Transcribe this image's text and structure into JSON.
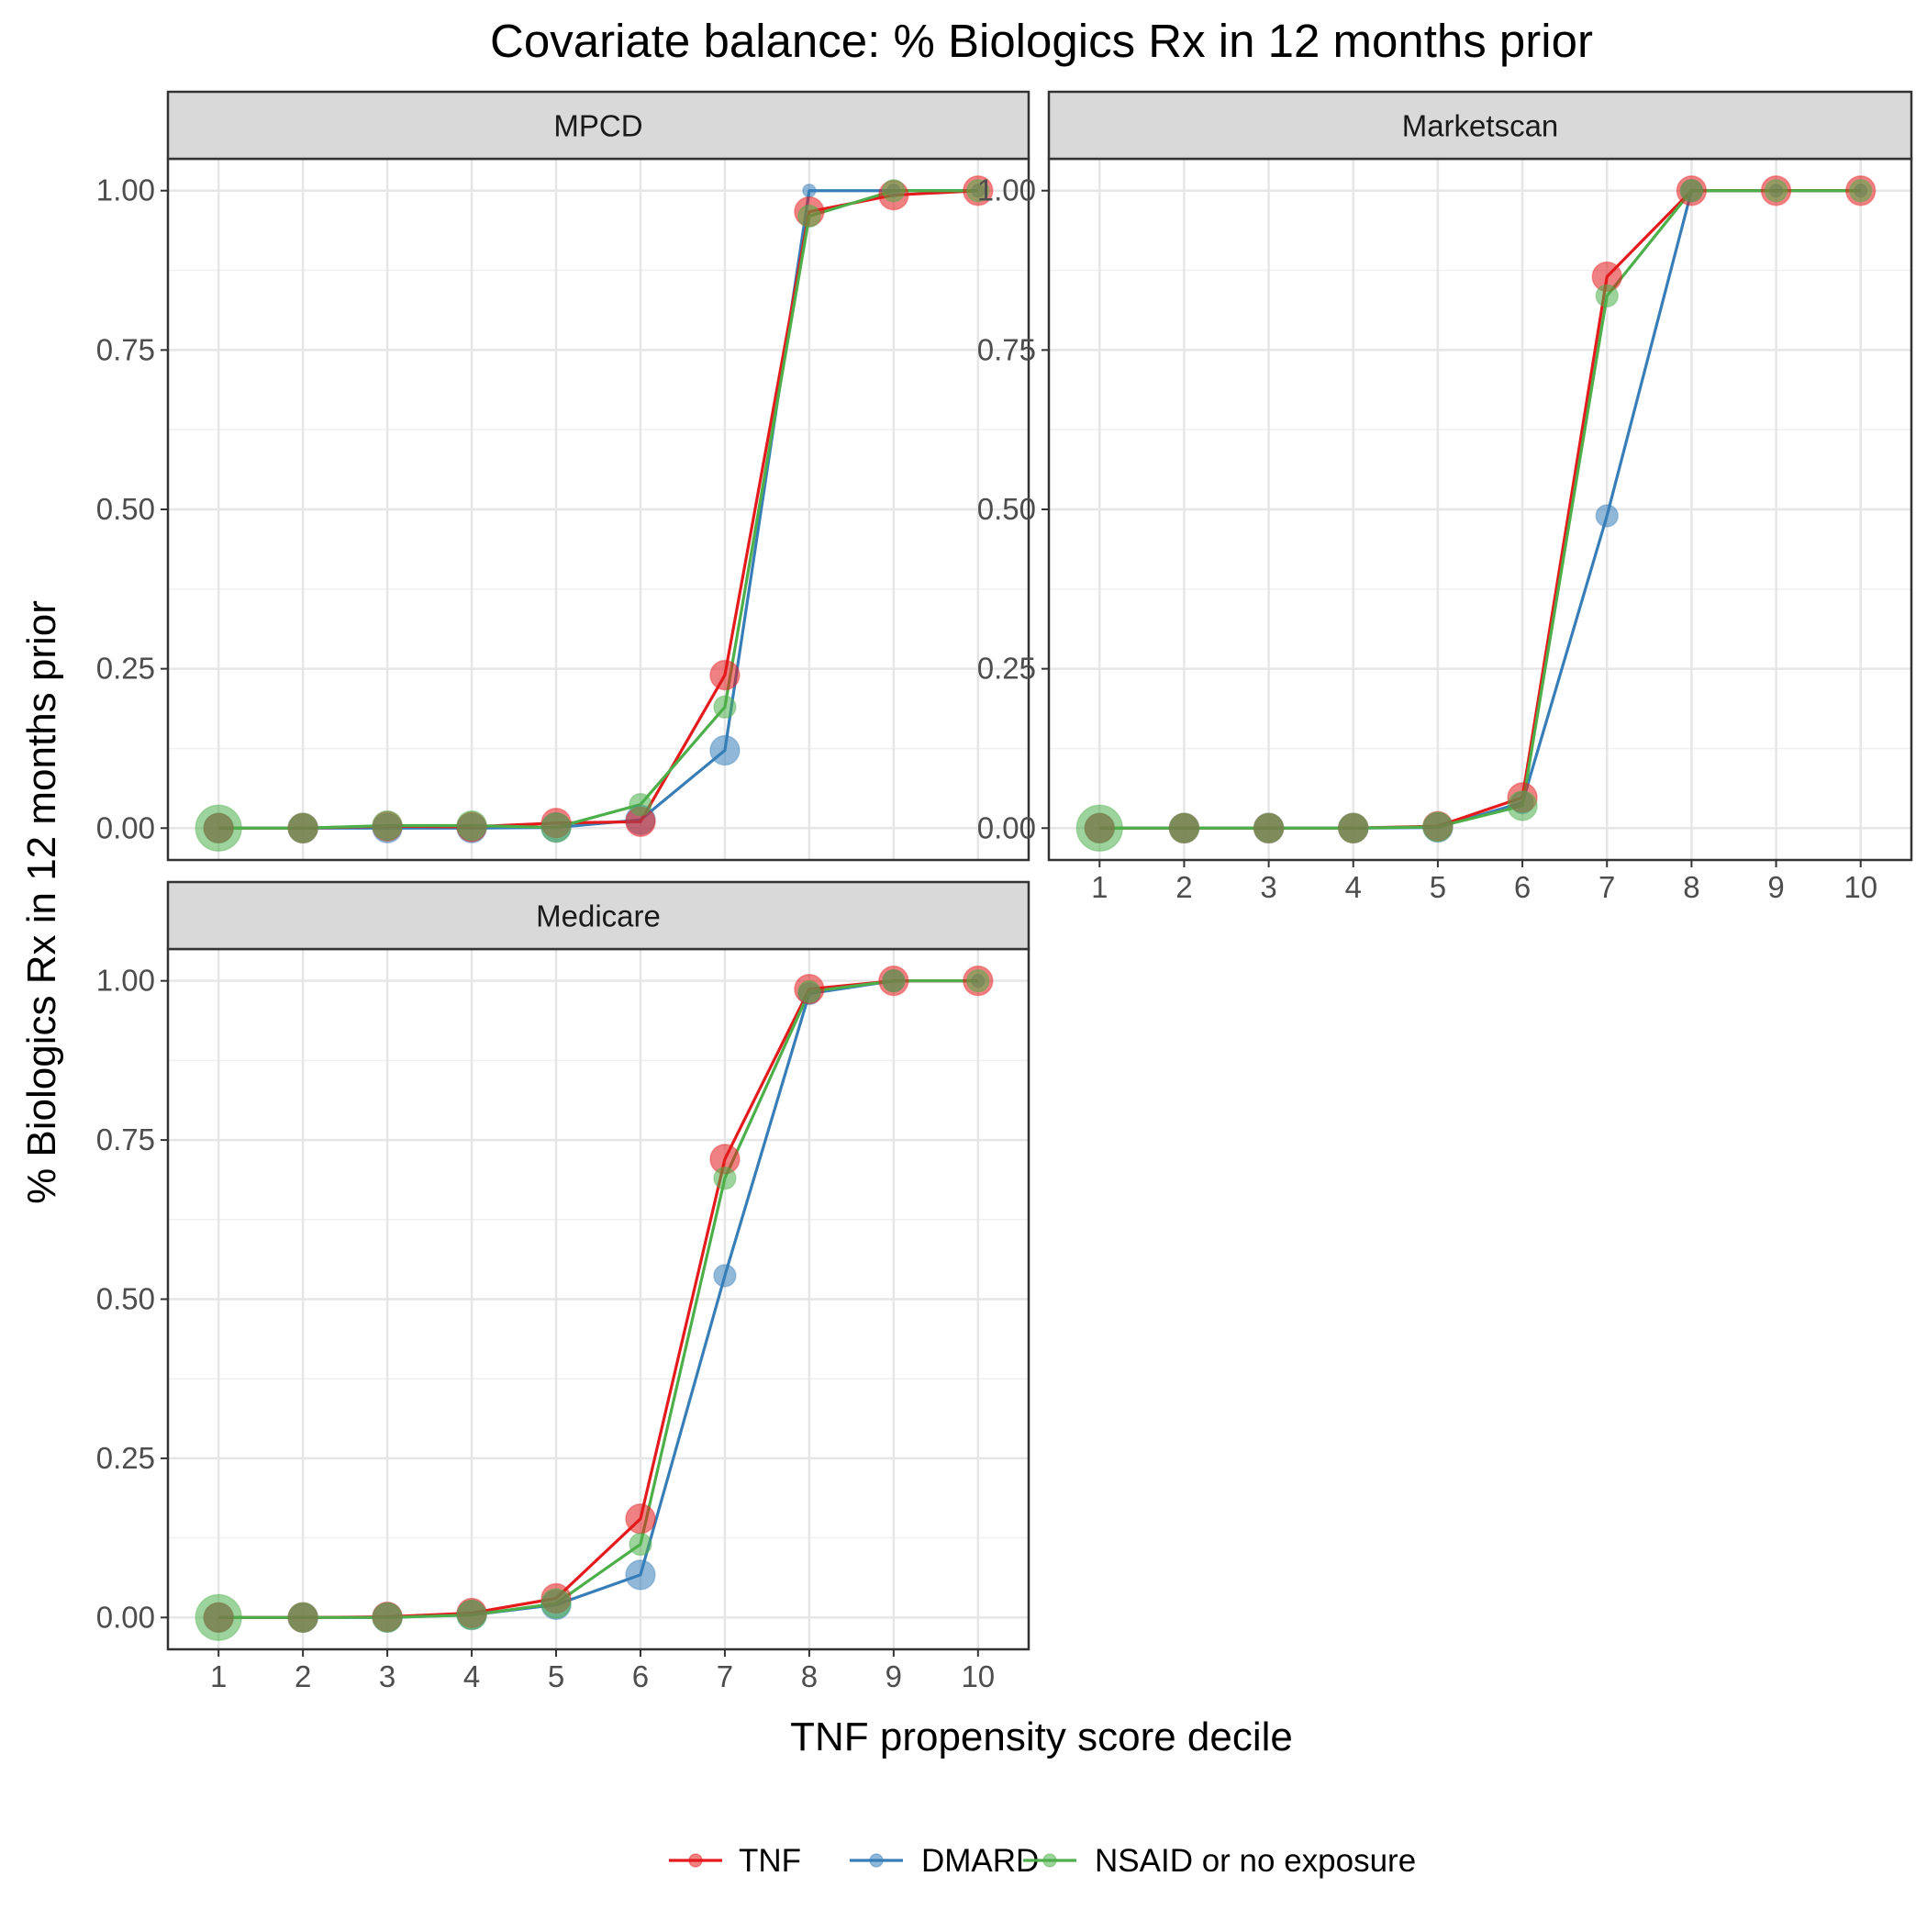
{
  "chart_data": {
    "type": "line",
    "title": "Covariate balance: % Biologics Rx in 12 months prior",
    "xlabel": "TNF propensity score decile",
    "ylabel": "% Biologics Rx in 12 months prior",
    "x": [
      1,
      2,
      3,
      4,
      5,
      6,
      7,
      8,
      9,
      10
    ],
    "x_tick_labels": [
      "1",
      "2",
      "3",
      "4",
      "5",
      "6",
      "7",
      "8",
      "9",
      "10"
    ],
    "y_ticks": [
      0,
      0.25,
      0.5,
      0.75,
      1.0
    ],
    "y_tick_labels": [
      "0.00",
      "0.25",
      "0.50",
      "0.75",
      "1.00"
    ],
    "ylim": [
      -0.05,
      1.05
    ],
    "xlim": [
      0.4,
      10.6
    ],
    "grid": true,
    "legend_position": "bottom",
    "colors": {
      "TNF": "#E41A1C",
      "DMARD": "#377EB8",
      "NSAID or no exposure": "#4DAF4A"
    },
    "panels": [
      {
        "label": "MPCD",
        "series": [
          {
            "name": "TNF",
            "values": [
              0,
              0,
              0.003,
              0.002,
              0.008,
              0.01,
              0.24,
              0.967,
              0.993,
              1.0
            ],
            "sizes": [
              3,
              3,
              3,
              3,
              3,
              3,
              3,
              3,
              3,
              3
            ]
          },
          {
            "name": "DMARD",
            "values": [
              0,
              0,
              0,
              0,
              0.001,
              0.013,
              0.122,
              1.0,
              1.0,
              1.0
            ],
            "sizes": [
              3,
              3,
              3,
              3,
              3,
              3,
              3,
              1,
              1,
              1
            ]
          },
          {
            "name": "NSAID or no exposure",
            "values": [
              0,
              0,
              0.004,
              0.004,
              0.001,
              0.037,
              0.19,
              0.96,
              1.0,
              1.0
            ],
            "sizes": [
              6,
              3,
              3,
              3,
              3,
              2,
              2,
              2,
              2,
              2
            ]
          }
        ]
      },
      {
        "label": "Marketscan",
        "series": [
          {
            "name": "TNF",
            "values": [
              0,
              0,
              0,
              0,
              0.003,
              0.048,
              0.865,
              1.0,
              1.0,
              1.0
            ],
            "sizes": [
              3,
              3,
              3,
              3,
              3,
              3,
              3,
              3,
              3,
              3
            ]
          },
          {
            "name": "DMARD",
            "values": [
              0,
              0,
              0,
              0,
              0.001,
              0.04,
              0.49,
              1.0,
              1.0,
              1.0
            ],
            "sizes": [
              3,
              3,
              3,
              3,
              3,
              2,
              2,
              2,
              1,
              1
            ]
          },
          {
            "name": "NSAID or no exposure",
            "values": [
              0,
              0,
              0,
              0,
              0.002,
              0.035,
              0.835,
              1.0,
              1.0,
              1.0
            ],
            "sizes": [
              6,
              3,
              3,
              3,
              3,
              3,
              2,
              2,
              2,
              2
            ]
          }
        ]
      },
      {
        "label": "Medicare",
        "series": [
          {
            "name": "TNF",
            "values": [
              0,
              0,
              0.001,
              0.007,
              0.03,
              0.155,
              0.72,
              0.987,
              1.0,
              1.0
            ],
            "sizes": [
              3,
              3,
              3,
              3,
              3,
              3,
              3,
              3,
              3,
              3
            ]
          },
          {
            "name": "DMARD",
            "values": [
              0,
              0,
              0,
              0.004,
              0.02,
              0.067,
              0.537,
              0.98,
              1.0,
              1.0
            ],
            "sizes": [
              3,
              3,
              3,
              3,
              3,
              3,
              2,
              2,
              2,
              1
            ]
          },
          {
            "name": "NSAID or no exposure",
            "values": [
              0,
              0,
              0,
              0.004,
              0.022,
              0.115,
              0.69,
              0.983,
              1.0,
              1.0
            ],
            "sizes": [
              6,
              3,
              3,
              3,
              3,
              2,
              2,
              2,
              2,
              2
            ]
          }
        ]
      }
    ]
  }
}
